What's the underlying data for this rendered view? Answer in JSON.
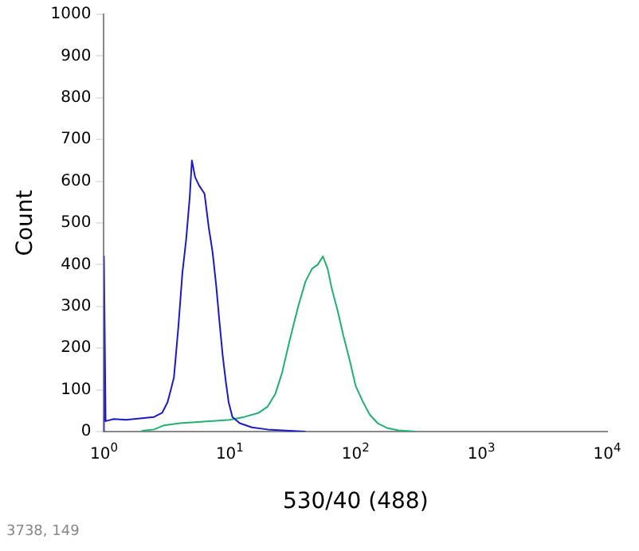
{
  "chart_data": {
    "type": "line",
    "xlabel": "530/40 (488)",
    "ylabel": "Count",
    "log": "x",
    "xlim": [
      1,
      10000
    ],
    "xticks": [
      {
        "value": 1,
        "label": "10$^{0}$"
      },
      {
        "value": 10,
        "label": "10$^{1}$"
      },
      {
        "value": 100,
        "label": "10$^{2}$"
      },
      {
        "value": 1000,
        "label": "10$^{3}$"
      },
      {
        "value": 10000,
        "label": "10$^{4}$"
      }
    ],
    "ylim": [
      0,
      1000
    ],
    "yticks": [
      0,
      100,
      200,
      300,
      400,
      500,
      600,
      700,
      800,
      900,
      1000
    ],
    "grid": false,
    "legend": false,
    "marker": "none",
    "annotations": [
      "3738, 149"
    ],
    "series": [
      {
        "color": "#1a1ac8",
        "x": [
          1,
          1,
          1.03,
          1.2,
          1.5,
          2,
          2.5,
          2.9,
          3.2,
          3.4,
          3.6,
          3.9,
          4.2,
          4.5,
          4.8,
          5,
          5.3,
          5.7,
          6.3,
          6.8,
          7.3,
          7.8,
          8.3,
          8.8,
          9.3,
          9.8,
          10.5,
          12,
          15,
          20,
          30,
          40
        ],
        "values": [
          0,
          420,
          25,
          30,
          28,
          32,
          35,
          45,
          70,
          100,
          130,
          250,
          380,
          460,
          560,
          650,
          610,
          590,
          570,
          490,
          430,
          350,
          260,
          180,
          120,
          70,
          35,
          20,
          10,
          5,
          2,
          0
        ]
      },
      {
        "color": "#22b070",
        "x": [
          2,
          2.5,
          3,
          4,
          5,
          7,
          10,
          13,
          17,
          20,
          23,
          26,
          30,
          35,
          40,
          45,
          50,
          55,
          60,
          65,
          72,
          80,
          90,
          100,
          115,
          130,
          150,
          180,
          220,
          300
        ],
        "values": [
          2,
          5,
          15,
          20,
          22,
          25,
          28,
          35,
          45,
          60,
          90,
          140,
          220,
          300,
          360,
          390,
          400,
          420,
          390,
          340,
          290,
          230,
          170,
          110,
          70,
          40,
          20,
          8,
          3,
          0
        ]
      }
    ]
  }
}
